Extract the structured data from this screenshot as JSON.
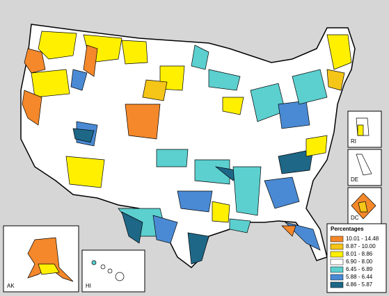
{
  "legend": {
    "title": "Percentages",
    "items": [
      {
        "label": "10.01 - 14.48",
        "color": "#f4882a"
      },
      {
        "label": "8.87 - 10.00",
        "color": "#f5c518"
      },
      {
        "label": "8.01 - 8.86",
        "color": "#fff000"
      },
      {
        "label": "6.90 - 8.00",
        "color": "#ffffff"
      },
      {
        "label": "6.45 - 6.89",
        "color": "#5ccfcf"
      },
      {
        "label": "5.88 - 6.44",
        "color": "#4a8ad4"
      },
      {
        "label": "4.86 - 5.87",
        "color": "#1e6787"
      }
    ]
  },
  "insets": [
    {
      "label": "AK"
    },
    {
      "label": "HI"
    },
    {
      "label": "RI"
    },
    {
      "label": "DE"
    },
    {
      "label": "DC"
    }
  ]
}
